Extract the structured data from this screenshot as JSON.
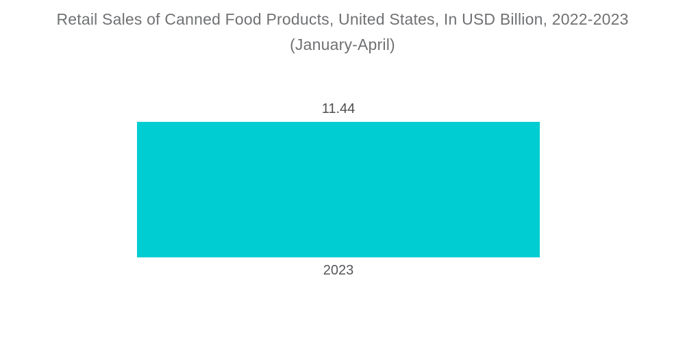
{
  "chart": {
    "title": "Retail Sales of Canned Food Products, United States, In USD Billion, 2022-2023",
    "subtitle": "(January-April)",
    "value_label": "11.44",
    "category_label": "2023"
  },
  "chart_data": {
    "type": "bar",
    "categories": [
      "2023"
    ],
    "values": [
      11.44
    ],
    "title": "Retail Sales of Canned Food Products, United States, In USD Billion, 2022-2023 (January-April)",
    "xlabel": "",
    "ylabel": "",
    "ylim": [
      0,
      12
    ],
    "orientation": "vertical",
    "grid": false,
    "legend": false,
    "data_labels": true
  },
  "colors": {
    "bar": "#00CDD2",
    "title_text": "#707173",
    "value_text": "#4D4E50",
    "category_text": "#55565A",
    "background": "#FFFFFF"
  }
}
